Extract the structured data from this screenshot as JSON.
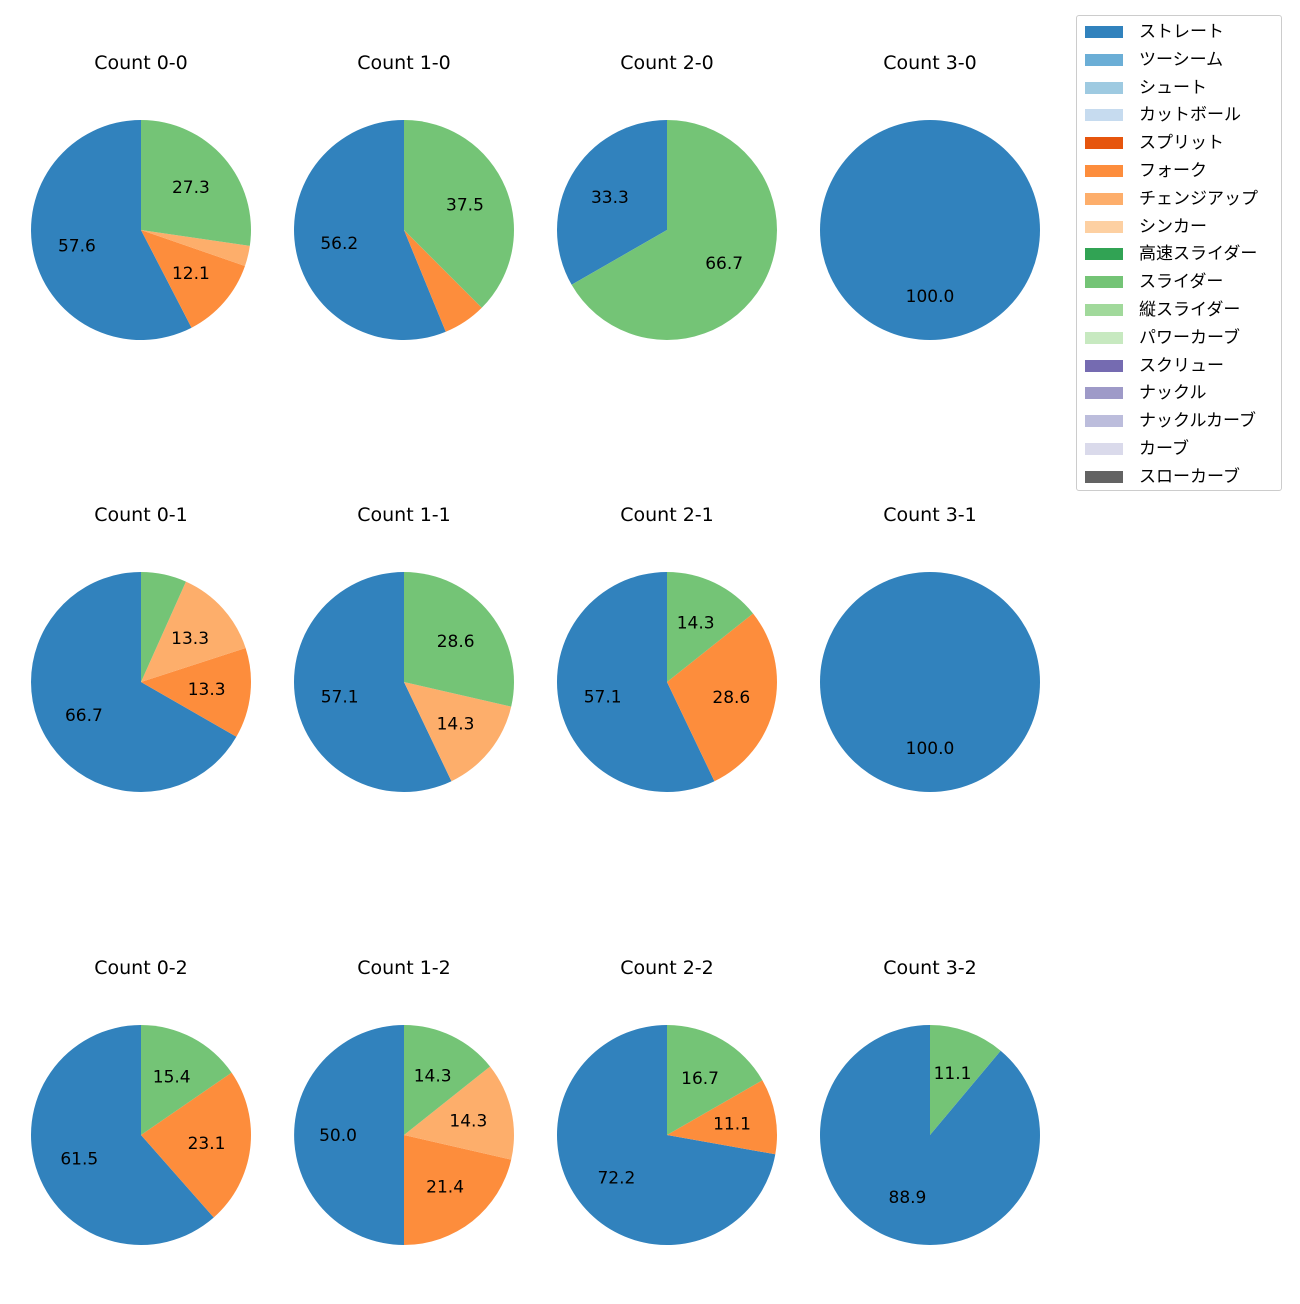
{
  "chart_data": {
    "type": "pie",
    "legend": {
      "position": "top-right",
      "entries": [
        {
          "name": "ストレート",
          "color": "#3182bd"
        },
        {
          "name": "ツーシーム",
          "color": "#6baed6"
        },
        {
          "name": "シュート",
          "color": "#9ecae1"
        },
        {
          "name": "カットボール",
          "color": "#c6dbef"
        },
        {
          "name": "スプリット",
          "color": "#e6550d"
        },
        {
          "name": "フォーク",
          "color": "#fd8d3c"
        },
        {
          "name": "チェンジアップ",
          "color": "#fdae6b"
        },
        {
          "name": "シンカー",
          "color": "#fdd0a2"
        },
        {
          "name": "高速スライダー",
          "color": "#31a354"
        },
        {
          "name": "スライダー",
          "color": "#74c476"
        },
        {
          "name": "縦スライダー",
          "color": "#a1d99b"
        },
        {
          "name": "パワーカーブ",
          "color": "#c7e9c0"
        },
        {
          "name": "スクリュー",
          "color": "#756bb1"
        },
        {
          "name": "ナックル",
          "color": "#9e9ac8"
        },
        {
          "name": "ナックルカーブ",
          "color": "#bcbddc"
        },
        {
          "name": "カーブ",
          "color": "#dadaeb"
        },
        {
          "name": "スローカーブ",
          "color": "#636363"
        }
      ]
    },
    "pies": [
      {
        "title": "Count 0-0",
        "slices": [
          {
            "pitch": "ストレート",
            "value": 57.6,
            "label": "57.6"
          },
          {
            "pitch": "フォーク",
            "value": 12.1,
            "label": "12.1"
          },
          {
            "pitch": "チェンジアップ",
            "value": 3.0,
            "label": ""
          },
          {
            "pitch": "スライダー",
            "value": 27.3,
            "label": "27.3"
          }
        ]
      },
      {
        "title": "Count 1-0",
        "slices": [
          {
            "pitch": "ストレート",
            "value": 56.2,
            "label": "56.2"
          },
          {
            "pitch": "フォーク",
            "value": 6.3,
            "label": ""
          },
          {
            "pitch": "スライダー",
            "value": 37.5,
            "label": "37.5"
          }
        ]
      },
      {
        "title": "Count 2-0",
        "slices": [
          {
            "pitch": "ストレート",
            "value": 33.3,
            "label": "33.3"
          },
          {
            "pitch": "スライダー",
            "value": 66.7,
            "label": "66.7"
          }
        ]
      },
      {
        "title": "Count 3-0",
        "slices": [
          {
            "pitch": "ストレート",
            "value": 100.0,
            "label": "100.0"
          }
        ]
      },
      {
        "title": "Count 0-1",
        "slices": [
          {
            "pitch": "ストレート",
            "value": 66.7,
            "label": "66.7"
          },
          {
            "pitch": "フォーク",
            "value": 13.3,
            "label": "13.3"
          },
          {
            "pitch": "チェンジアップ",
            "value": 13.3,
            "label": "13.3"
          },
          {
            "pitch": "スライダー",
            "value": 6.7,
            "label": ""
          }
        ]
      },
      {
        "title": "Count 1-1",
        "slices": [
          {
            "pitch": "ストレート",
            "value": 57.1,
            "label": "57.1"
          },
          {
            "pitch": "チェンジアップ",
            "value": 14.3,
            "label": "14.3"
          },
          {
            "pitch": "スライダー",
            "value": 28.6,
            "label": "28.6"
          }
        ]
      },
      {
        "title": "Count 2-1",
        "slices": [
          {
            "pitch": "ストレート",
            "value": 57.1,
            "label": "57.1"
          },
          {
            "pitch": "フォーク",
            "value": 28.6,
            "label": "28.6"
          },
          {
            "pitch": "スライダー",
            "value": 14.3,
            "label": "14.3"
          }
        ]
      },
      {
        "title": "Count 3-1",
        "slices": [
          {
            "pitch": "ストレート",
            "value": 100.0,
            "label": "100.0"
          }
        ]
      },
      {
        "title": "Count 0-2",
        "slices": [
          {
            "pitch": "ストレート",
            "value": 61.5,
            "label": "61.5"
          },
          {
            "pitch": "フォーク",
            "value": 23.1,
            "label": "23.1"
          },
          {
            "pitch": "スライダー",
            "value": 15.4,
            "label": "15.4"
          }
        ]
      },
      {
        "title": "Count 1-2",
        "slices": [
          {
            "pitch": "ストレート",
            "value": 50.0,
            "label": "50.0"
          },
          {
            "pitch": "フォーク",
            "value": 21.4,
            "label": "21.4"
          },
          {
            "pitch": "チェンジアップ",
            "value": 14.3,
            "label": "14.3"
          },
          {
            "pitch": "スライダー",
            "value": 14.3,
            "label": "14.3"
          }
        ]
      },
      {
        "title": "Count 2-2",
        "slices": [
          {
            "pitch": "ストレート",
            "value": 72.2,
            "label": "72.2"
          },
          {
            "pitch": "フォーク",
            "value": 11.1,
            "label": "11.1"
          },
          {
            "pitch": "スライダー",
            "value": 16.7,
            "label": "16.7"
          }
        ]
      },
      {
        "title": "Count 3-2",
        "slices": [
          {
            "pitch": "ストレート",
            "value": 88.9,
            "label": "88.9"
          },
          {
            "pitch": "スライダー",
            "value": 11.1,
            "label": "11.1"
          }
        ]
      }
    ]
  }
}
